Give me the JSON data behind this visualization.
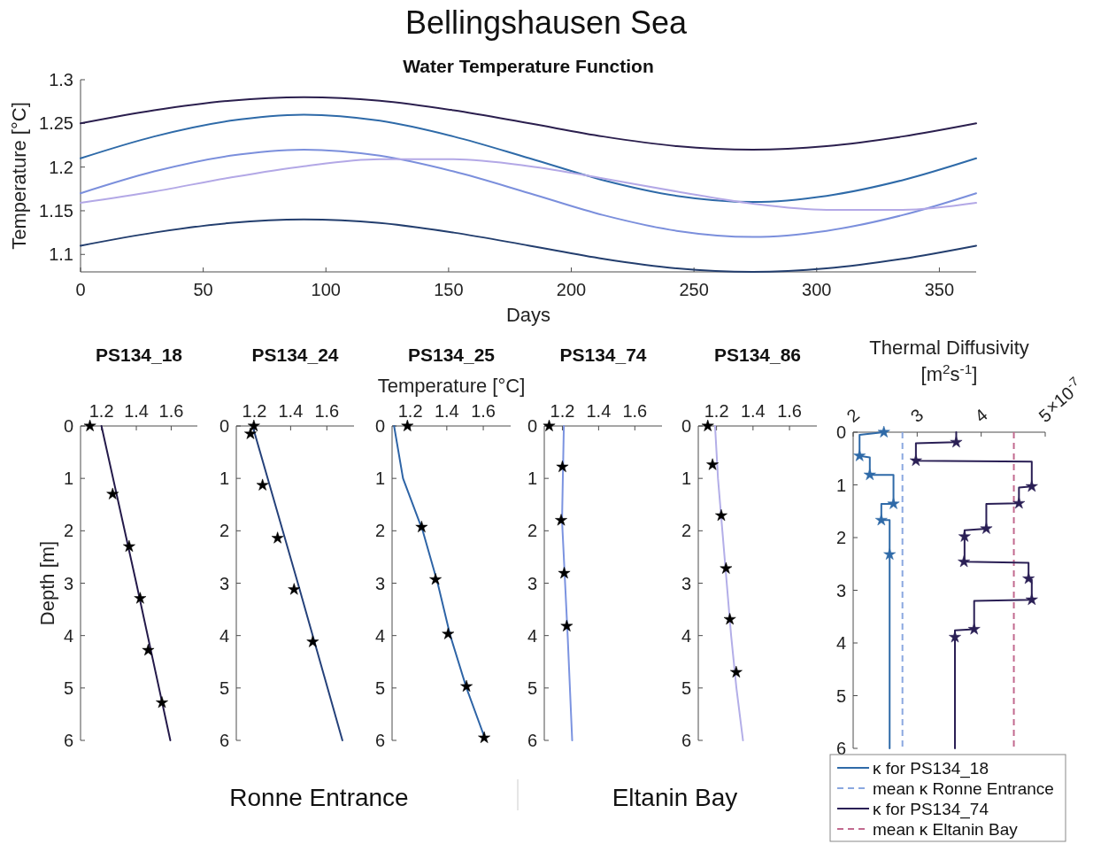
{
  "chart_data": [
    {
      "type": "line",
      "title": "Bellingshausen Sea",
      "subtitle": "Water Temperature Function",
      "xlabel": "Days",
      "ylabel": "Temperature [°C]",
      "x": [
        0,
        30,
        61,
        91,
        122,
        152,
        183,
        213,
        243,
        274,
        304,
        335,
        365
      ],
      "xlim": [
        0,
        365
      ],
      "xticks": [
        0,
        50,
        100,
        150,
        200,
        250,
        300,
        350
      ],
      "ylim": [
        1.08,
        1.3
      ],
      "yticks": [
        1.1,
        1.15,
        1.2,
        1.25,
        1.3
      ],
      "series": [
        {
          "color": "#2b1f4e",
          "values": [
            1.25,
            1.265,
            1.276,
            1.28,
            1.276,
            1.265,
            1.25,
            1.235,
            1.224,
            1.22,
            1.224,
            1.235,
            1.25
          ]
        },
        {
          "color": "#2e6aa8",
          "values": [
            1.21,
            1.235,
            1.253,
            1.26,
            1.253,
            1.235,
            1.21,
            1.185,
            1.167,
            1.16,
            1.167,
            1.185,
            1.21
          ]
        },
        {
          "color": "#7b8fdc",
          "values": [
            1.17,
            1.195,
            1.213,
            1.22,
            1.213,
            1.195,
            1.17,
            1.145,
            1.127,
            1.12,
            1.127,
            1.145,
            1.17
          ]
        },
        {
          "color": "#b3a8e6",
          "values": [
            1.159,
            1.172,
            1.188,
            1.201,
            1.209,
            1.209,
            1.201,
            1.187,
            1.172,
            1.158,
            1.151,
            1.151,
            1.159
          ]
        },
        {
          "color": "#233e6e",
          "values": [
            1.11,
            1.125,
            1.136,
            1.14,
            1.136,
            1.125,
            1.11,
            1.095,
            1.084,
            1.08,
            1.084,
            1.095,
            1.11
          ]
        }
      ]
    },
    {
      "type": "line",
      "title": "PS134_18",
      "ylabel": "Depth [m]",
      "xlim": [
        1.08,
        1.75
      ],
      "xticks": [
        1.2,
        1.4,
        1.6
      ],
      "ylim": [
        6,
        0
      ],
      "yticks": [
        0,
        1,
        2,
        3,
        4,
        5,
        6
      ],
      "series": [
        {
          "color": "#241a4a",
          "x": [
            1.2,
            1.4,
            1.595
          ],
          "values": [
            0,
            3,
            6
          ]
        },
        {
          "type": "scatter",
          "marker": "star",
          "color": "#000000",
          "x": [
            1.134,
            1.264,
            1.359,
            1.422,
            1.468,
            1.547
          ],
          "values": [
            0,
            1.3,
            2.3,
            3.29,
            4.28,
            5.28
          ]
        }
      ]
    },
    {
      "type": "line",
      "title": "PS134_24",
      "xlim": [
        1.1,
        1.75
      ],
      "xticks": [
        1.2,
        1.4,
        1.6
      ],
      "ylim": [
        6,
        0
      ],
      "yticks": [
        0,
        1,
        2,
        3,
        4,
        5,
        6
      ],
      "annotations": [
        "Ronne Entrance"
      ],
      "series": [
        {
          "color": "#25417a",
          "x": [
            1.19,
            1.44,
            1.686
          ],
          "values": [
            0,
            3,
            6
          ]
        },
        {
          "type": "scatter",
          "marker": "star",
          "color": "#000000",
          "x": [
            1.197,
            1.178,
            1.245,
            1.328,
            1.419,
            1.522
          ],
          "values": [
            0,
            0.15,
            1.13,
            2.14,
            3.12,
            4.12
          ]
        }
      ]
    },
    {
      "type": "line",
      "title": "PS134_25",
      "xlabel": "Temperature [°C]",
      "xlim": [
        1.1,
        1.75
      ],
      "xticks": [
        1.2,
        1.4,
        1.6
      ],
      "ylim": [
        6,
        0
      ],
      "yticks": [
        0,
        1,
        2,
        3,
        4,
        5,
        6
      ],
      "series": [
        {
          "color": "#2e64a6",
          "x": [
            1.111,
            1.16,
            1.268,
            1.35,
            1.419,
            1.508,
            1.613
          ],
          "values": [
            0,
            1,
            2,
            3,
            4,
            5,
            6
          ]
        },
        {
          "type": "scatter",
          "marker": "star",
          "color": "#000000",
          "x": [
            1.184,
            1.262,
            1.338,
            1.407,
            1.508,
            1.605
          ],
          "values": [
            0,
            1.93,
            2.93,
            3.97,
            4.97,
            5.95
          ]
        }
      ]
    },
    {
      "type": "line",
      "title": "PS134_74",
      "xlim": [
        1.1,
        1.75
      ],
      "xticks": [
        1.2,
        1.4,
        1.6
      ],
      "ylim": [
        6,
        0
      ],
      "yticks": [
        0,
        1,
        2,
        3,
        4,
        5,
        6
      ],
      "annotations": [
        "Eltanin Bay"
      ],
      "series": [
        {
          "color": "#7b93e0",
          "x": [
            1.208,
            1.198,
            1.229,
            1.254
          ],
          "values": [
            0,
            1.8,
            4,
            6
          ]
        },
        {
          "type": "scatter",
          "marker": "star",
          "color": "#000000",
          "x": [
            1.127,
            1.2,
            1.193,
            1.21,
            1.224
          ],
          "values": [
            0,
            0.78,
            1.8,
            2.81,
            3.82
          ]
        }
      ]
    },
    {
      "type": "line",
      "title": "PS134_86",
      "xlim": [
        1.1,
        1.75
      ],
      "xticks": [
        1.2,
        1.4,
        1.6
      ],
      "ylim": [
        6,
        0
      ],
      "yticks": [
        0,
        1,
        2,
        3,
        4,
        5,
        6
      ],
      "series": [
        {
          "color": "#b3aee8",
          "x": [
            1.192,
            1.208,
            1.232,
            1.256,
            1.28,
            1.309,
            1.345
          ],
          "values": [
            0,
            1,
            2,
            3,
            4,
            5,
            6
          ]
        },
        {
          "type": "scatter",
          "marker": "star",
          "color": "#000000",
          "x": [
            1.152,
            1.178,
            1.226,
            1.252,
            1.273,
            1.308
          ],
          "values": [
            0,
            0.74,
            1.71,
            2.72,
            3.69,
            4.7
          ]
        }
      ]
    },
    {
      "type": "line",
      "xlabel": "Thermal Diffusivity [m$^{2}$s$^{-1}$]",
      "xlim": [
        2,
        5
      ],
      "xticks": [
        2,
        3,
        4,
        5
      ],
      "annotations": [
        "×10$^{-7}$"
      ],
      "ylim": [
        6,
        0
      ],
      "yticks": [
        0,
        1,
        2,
        3,
        4,
        5,
        6
      ],
      "legend": "bottom",
      "series": [
        {
          "name": "κ for PS134_18",
          "color": "#2f6aa8",
          "x": [
            2.48,
            2.1,
            2.1,
            2.26,
            2.26,
            2.63,
            2.63,
            2.44,
            2.44,
            2.57,
            2.57
          ],
          "values": [
            0,
            0.05,
            0.45,
            0.48,
            0.81,
            0.81,
            1.36,
            1.36,
            1.67,
            1.67,
            6
          ]
        },
        {
          "name": "κ for PS134_74",
          "color": "#2a1f55",
          "x": [
            3.61,
            3.61,
            2.98,
            2.98,
            4.79,
            4.79,
            4.59,
            4.59,
            4.08,
            4.08,
            3.74,
            3.74,
            4.74,
            4.74,
            4.79,
            4.79,
            3.89,
            3.89,
            3.59,
            3.59
          ],
          "values": [
            0,
            0.19,
            0.21,
            0.54,
            0.56,
            1.03,
            1.05,
            1.35,
            1.36,
            1.83,
            1.86,
            2.46,
            2.48,
            2.78,
            2.8,
            3.18,
            3.2,
            3.74,
            3.76,
            6
          ]
        },
        {
          "type": "scatter",
          "marker": "star",
          "color": "#2f6aa8",
          "x": [
            2.48,
            2.1,
            2.26,
            2.63,
            2.44,
            2.57
          ],
          "values": [
            0,
            0.45,
            0.81,
            1.36,
            1.67,
            2.32
          ]
        },
        {
          "type": "scatter",
          "marker": "star",
          "color": "#2a1f55",
          "x": [
            3.61,
            2.98,
            4.79,
            4.59,
            4.08,
            3.74,
            3.73,
            4.74,
            4.79,
            3.89,
            3.59
          ],
          "values": [
            0.19,
            0.54,
            1.03,
            1.35,
            1.83,
            1.98,
            2.46,
            2.78,
            3.18,
            3.74,
            3.89
          ]
        }
      ],
      "ref_lines": [
        {
          "axis": "x",
          "value": 2.77,
          "label": "mean κ Ronne Entrance",
          "color": "#8aa8e0",
          "line_style": "dashed"
        },
        {
          "axis": "x",
          "value": 4.51,
          "label": "mean κ Eltanin Bay",
          "color": "#c26a8f",
          "line_style": "dashed"
        }
      ]
    }
  ]
}
